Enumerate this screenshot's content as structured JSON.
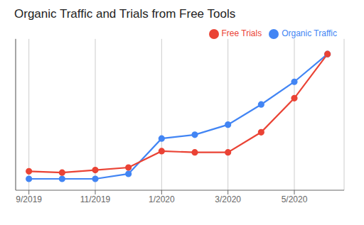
{
  "chart_data": {
    "type": "line",
    "title": "Organic Traffic and Trials from Free Tools",
    "x": [
      0,
      1,
      2,
      3,
      4,
      5,
      6,
      7,
      8,
      9
    ],
    "series": [
      {
        "name": "Organic Traffic",
        "color": "#4285F4",
        "values": [
          1,
          1,
          1,
          5,
          33,
          36,
          44,
          60,
          78,
          100
        ]
      },
      {
        "name": "Free Trials",
        "color": "#EA4335",
        "values": [
          7,
          6,
          8,
          10,
          23,
          22,
          22,
          38,
          65,
          100
        ]
      }
    ],
    "marker": "circle",
    "xlim": [
      -0.4,
      9.5
    ],
    "ylim": [
      -8,
      112
    ],
    "xticks": [
      {
        "value": 0,
        "label": "9/2019"
      },
      {
        "value": 2,
        "label": "11/2019"
      },
      {
        "value": 4,
        "label": "1/2020"
      },
      {
        "value": 6,
        "label": "3/2020"
      },
      {
        "value": 8,
        "label": "5/2020"
      }
    ],
    "yticks": [],
    "grid": true,
    "legend": "upper right",
    "tick_labels": "x"
  }
}
